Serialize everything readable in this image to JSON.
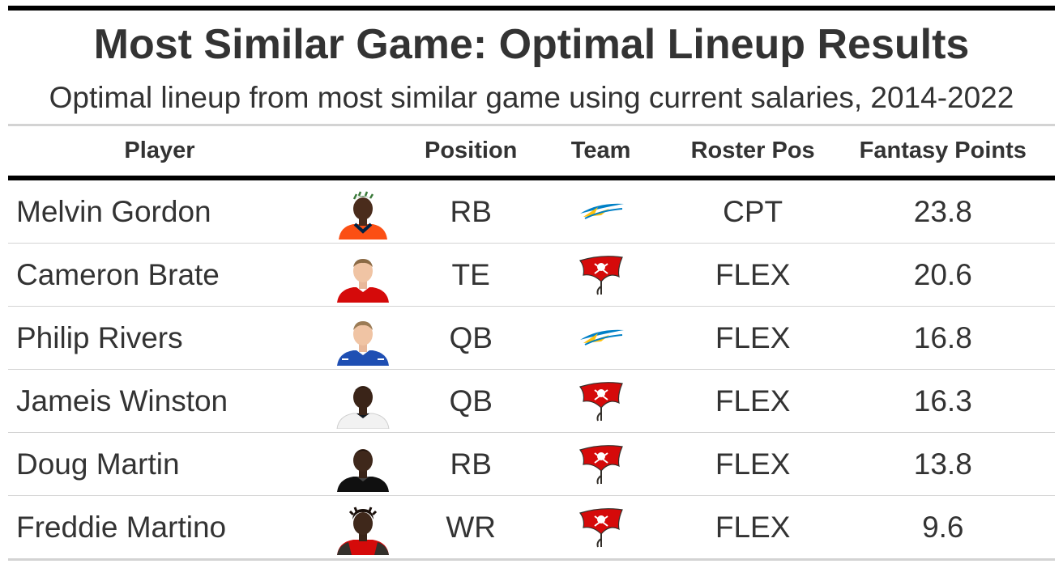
{
  "header": {
    "title": "Most Similar Game: Optimal Lineup Results",
    "subtitle": "Optimal lineup from most similar game using current salaries, 2014-2022"
  },
  "table": {
    "columns": {
      "player": "Player",
      "image": "",
      "position": "Position",
      "team": "Team",
      "roster_pos": "Roster Pos",
      "fantasy_points": "Fantasy Points"
    },
    "rows": [
      {
        "player": "Melvin Gordon",
        "headshot": "headshot-orange-jersey",
        "position": "RB",
        "team_logo": "chargers-logo",
        "roster_pos": "CPT",
        "fantasy_points": "23.8"
      },
      {
        "player": "Cameron Brate",
        "headshot": "headshot-red-jersey",
        "position": "TE",
        "team_logo": "buccaneers-logo",
        "roster_pos": "FLEX",
        "fantasy_points": "20.6"
      },
      {
        "player": "Philip Rivers",
        "headshot": "headshot-blue-jersey",
        "position": "QB",
        "team_logo": "chargers-logo",
        "roster_pos": "FLEX",
        "fantasy_points": "16.8"
      },
      {
        "player": "Jameis Winston",
        "headshot": "headshot-white-jersey",
        "position": "QB",
        "team_logo": "buccaneers-logo",
        "roster_pos": "FLEX",
        "fantasy_points": "16.3"
      },
      {
        "player": "Doug Martin",
        "headshot": "headshot-black-jersey",
        "position": "RB",
        "team_logo": "buccaneers-logo",
        "roster_pos": "FLEX",
        "fantasy_points": "13.8"
      },
      {
        "player": "Freddie Martino",
        "headshot": "headshot-red-pewter-jersey",
        "position": "WR",
        "team_logo": "buccaneers-logo",
        "roster_pos": "FLEX",
        "fantasy_points": "9.6"
      }
    ]
  },
  "colors": {
    "text": "#333333",
    "rule_dark": "#000000",
    "rule_light": "#d3d3d3",
    "chargers_blue": "#0080c6",
    "chargers_gold": "#ffc20e",
    "bucs_red": "#d50a0a",
    "bucs_pewter": "#34302b"
  }
}
